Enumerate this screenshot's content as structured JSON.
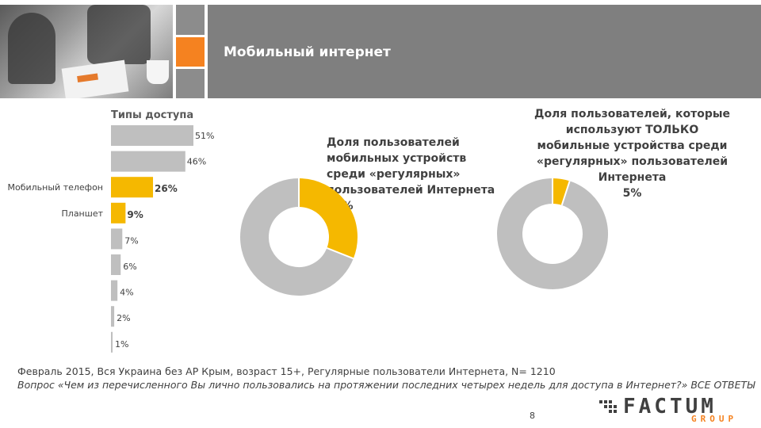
{
  "header": {
    "title": "Мобильный интернет"
  },
  "chart_data": [
    {
      "type": "bar",
      "title": "Типы доступа",
      "categories": [
        "",
        "",
        "Мобильный телефон",
        "Планшет",
        "",
        "",
        "",
        "",
        ""
      ],
      "values": [
        51,
        46,
        26,
        9,
        7,
        6,
        4,
        2,
        1
      ],
      "value_labels": [
        "51%",
        "46%",
        "26%",
        "9%",
        "7%",
        "6%",
        "4%",
        "2%",
        "1%"
      ],
      "highlighted": [
        false,
        false,
        true,
        true,
        false,
        false,
        false,
        false,
        false
      ],
      "colors": {
        "default": "#bfbfbf",
        "highlight": "#f5b800"
      }
    },
    {
      "type": "pie",
      "title": "Доля пользователей мобильных устройств среди «регулярных» пользователей Интернета",
      "value_label": "31%",
      "values": [
        31,
        69
      ],
      "colors": [
        "#f5b800",
        "#bfbfbf"
      ]
    },
    {
      "type": "pie",
      "title": "Доля пользователей, которые используют ТОЛЬКО мобильные устройства среди «регулярных» пользователей Интернета",
      "value_label": "5%",
      "values": [
        5,
        95
      ],
      "colors": [
        "#f5b800",
        "#bfbfbf"
      ]
    }
  ],
  "donut1": {
    "lines": [
      "Доля пользователей",
      "мобильных устройств",
      "среди «регулярных»",
      "пользователей Интернета",
      "31%"
    ]
  },
  "donut2": {
    "lines": [
      "Доля пользователей, которые",
      "используют  ТОЛЬКО",
      "мобильные устройства среди",
      "«регулярных» пользователей",
      "Интернета",
      "5%"
    ]
  },
  "footer": {
    "note1": "Февраль 2015, Вся Украина без АР Крым, возраст 15+, Регулярные пользователи Интернета, N= 1210",
    "note2": "Вопрос «Чем из перечисленного Вы лично пользовались на протяжении последних четырех недель для доступа в Интернет?» ВСЕ ОТВЕТЫ",
    "page": "8",
    "logo": "FACTUM",
    "logo_sub": "GROUP"
  }
}
